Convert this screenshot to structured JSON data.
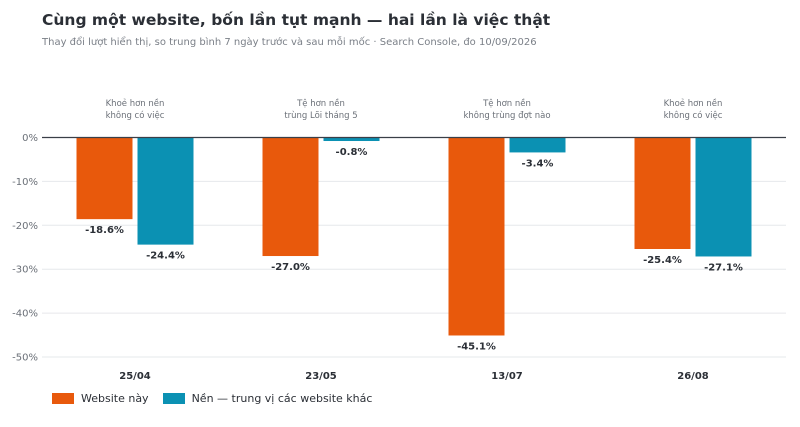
{
  "title": "Cùng một website, bốn lần tụt mạnh — hai lần là việc thật",
  "subtitle": "Thay đổi lượt hiển thị, so trung bình 7 ngày trước và sau mỗi mốc · Search Console, đo 10/09/2026",
  "colors": {
    "site": "#e8590c",
    "baseline": "#0b91b3",
    "axis": "#3a3f47",
    "grid": "#e6e8eb"
  },
  "chart_data": {
    "type": "bar",
    "categories": [
      "25/04",
      "23/05",
      "13/07",
      "26/08"
    ],
    "annotations": [
      [
        "Khoẻ hơn nền",
        "không có việc"
      ],
      [
        "Tệ hơn nền",
        "trùng Lõi tháng 5"
      ],
      [
        "Tệ hơn nền",
        "không trùng đợt nào"
      ],
      [
        "Khoẻ hơn nền",
        "không có việc"
      ]
    ],
    "series": [
      {
        "name": "Website này",
        "values": [
          -18.6,
          -27.0,
          -45.1,
          -25.4
        ],
        "labels": [
          "-18.6%",
          "-27.0%",
          "-45.1%",
          "-25.4%"
        ]
      },
      {
        "name": "Nền — trung vị các website khác",
        "values": [
          -24.4,
          -0.8,
          -3.4,
          -27.1
        ],
        "labels": [
          "-24.4%",
          "-0.8%",
          "-3.4%",
          "-27.1%"
        ]
      }
    ],
    "yticks": [
      0,
      -10,
      -20,
      -30,
      -40,
      -50
    ],
    "ytick_labels": [
      "0%",
      "-10%",
      "-20%",
      "-30%",
      "-40%",
      "-50%"
    ],
    "ylim": [
      -50,
      0
    ],
    "grid": true,
    "legend": "bottom-left"
  }
}
